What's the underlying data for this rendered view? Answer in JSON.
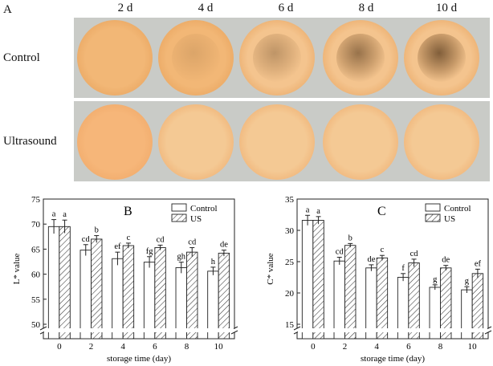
{
  "photo_panel": {
    "letter": "A",
    "columns": [
      "2 d",
      "4 d",
      "6 d",
      "8 d",
      "10 d"
    ],
    "rows": [
      "Control",
      "Ultrasound"
    ]
  },
  "chart_data": [
    {
      "type": "bar",
      "panel_letter": "B",
      "categories": [
        "0",
        "2",
        "4",
        "6",
        "8",
        "10"
      ],
      "xlabel": "storage time (day)",
      "ylabel": "L* value",
      "yticks": [
        50,
        55,
        60,
        65,
        70,
        75
      ],
      "ylim": [
        50,
        75
      ],
      "axis_break": true,
      "legend": "top-right",
      "series": [
        {
          "name": "Control",
          "fill": "#ffffff",
          "values": [
            69.5,
            64.8,
            63.1,
            62.4,
            61.3,
            60.6
          ],
          "errors": [
            1.4,
            1.1,
            1.3,
            1.1,
            1.1,
            0.8
          ],
          "letters": [
            "a",
            "cd",
            "ef",
            "fg",
            "gh",
            "h"
          ]
        },
        {
          "name": "US",
          "fill": "hatch",
          "values": [
            69.5,
            67.0,
            65.7,
            65.3,
            64.4,
            64.2
          ],
          "errors": [
            1.3,
            0.7,
            0.5,
            0.5,
            0.9,
            0.6
          ],
          "letters": [
            "a",
            "b",
            "c",
            "cd",
            "cd",
            "de"
          ]
        }
      ]
    },
    {
      "type": "bar",
      "panel_letter": "C",
      "categories": [
        "0",
        "2",
        "4",
        "6",
        "8",
        "10"
      ],
      "xlabel": "storage time (day)",
      "ylabel": "C* value",
      "yticks": [
        15,
        20,
        25,
        30,
        35
      ],
      "ylim": [
        15,
        35
      ],
      "axis_break": true,
      "legend": "top-right",
      "series": [
        {
          "name": "Control",
          "fill": "#ffffff",
          "values": [
            31.6,
            25.1,
            24.0,
            22.5,
            20.9,
            20.5
          ],
          "errors": [
            0.8,
            0.6,
            0.5,
            0.6,
            0.4,
            0.5
          ],
          "letters": [
            "a",
            "cd",
            "de",
            "f",
            "g",
            "g"
          ]
        },
        {
          "name": "US",
          "fill": "hatch",
          "values": [
            31.6,
            27.6,
            25.6,
            24.8,
            24.0,
            23.1
          ],
          "errors": [
            0.6,
            0.3,
            0.4,
            0.6,
            0.4,
            0.7
          ],
          "letters": [
            "a",
            "b",
            "c",
            "cd",
            "de",
            "ef"
          ]
        }
      ]
    }
  ]
}
